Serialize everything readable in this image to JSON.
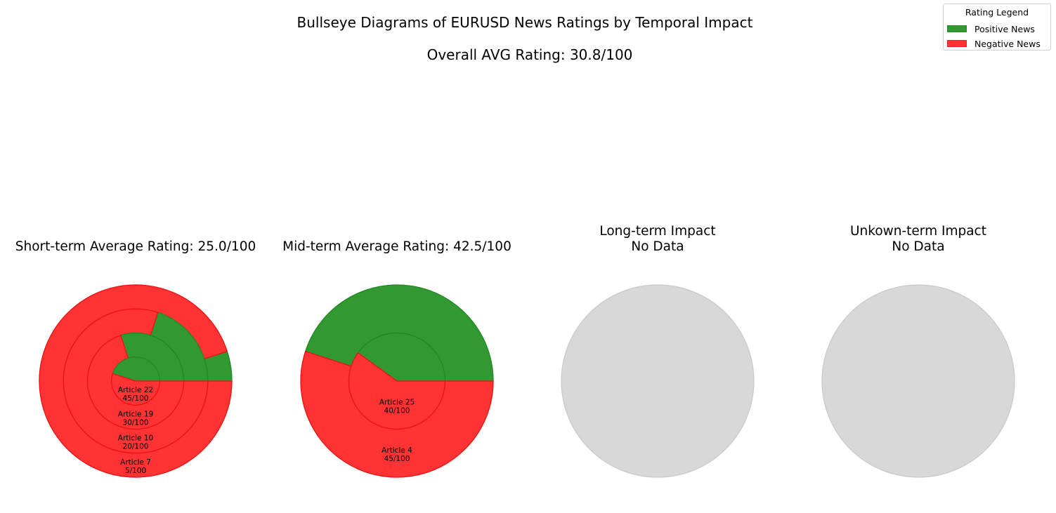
{
  "figure": {
    "title": "Bullseye Diagrams of EURUSD News Ratings by Temporal Impact",
    "subtitle": "Overall AVG Rating: 30.8/100"
  },
  "legend": {
    "title": "Rating Legend",
    "items": [
      {
        "label": "Positive News",
        "color": "#329932"
      },
      {
        "label": "Negative News",
        "color": "#ff3333"
      }
    ]
  },
  "colors": {
    "positive": "#329932",
    "negative": "#ff3333",
    "empty": "#d8d8d8"
  },
  "chart_data": [
    {
      "type": "pie",
      "title": "Short-term Average Rating: 25.0/100",
      "rings": [
        {
          "label": "Article 22",
          "rating_text": "45/100",
          "positive": 45,
          "negative": 55
        },
        {
          "label": "Article 19",
          "rating_text": "30/100",
          "positive": 30,
          "negative": 70
        },
        {
          "label": "Article 10",
          "rating_text": "20/100",
          "positive": 20,
          "negative": 80
        },
        {
          "label": "Article 7",
          "rating_text": "5/100",
          "positive": 5,
          "negative": 95
        }
      ]
    },
    {
      "type": "pie",
      "title": "Mid-term Average Rating: 42.5/100",
      "rings": [
        {
          "label": "Article 25",
          "rating_text": "40/100",
          "positive": 40,
          "negative": 60
        },
        {
          "label": "Article 4",
          "rating_text": "45/100",
          "positive": 45,
          "negative": 55
        }
      ]
    },
    {
      "type": "pie",
      "title": "Long-term Impact\nNo Data",
      "rings": []
    },
    {
      "type": "pie",
      "title": "Unkown-term Impact\nNo Data",
      "rings": []
    }
  ]
}
